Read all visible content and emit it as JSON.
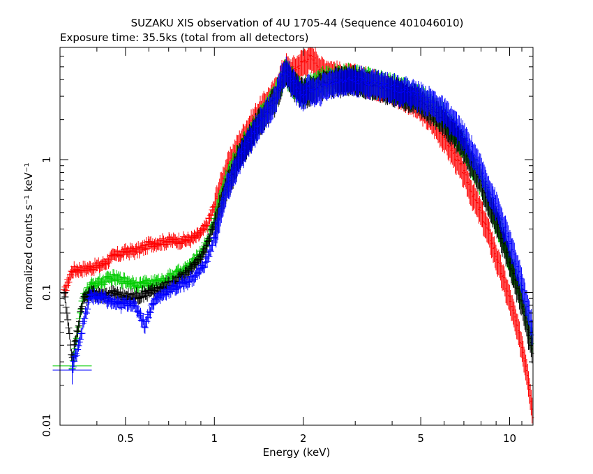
{
  "chart_data": {
    "type": "scatter",
    "title": "SUZAKU XIS observation of 4U 1705-44 (Sequence 401046010)",
    "subtitle": "Exposure time: 35.5ks (total from all detectors)",
    "xlabel": "Energy (keV)",
    "ylabel": "normalized counts s⁻¹ keV⁻¹",
    "xscale": "log",
    "yscale": "log",
    "xlim": [
      0.3,
      12
    ],
    "ylim": [
      0.01,
      7
    ],
    "x_ticks": [
      {
        "value": 0.5,
        "label": "0.5"
      },
      {
        "value": 1,
        "label": "1"
      },
      {
        "value": 2,
        "label": "2"
      },
      {
        "value": 5,
        "label": "5"
      },
      {
        "value": 10,
        "label": "10"
      }
    ],
    "y_ticks": [
      {
        "value": 0.01,
        "label": "0.01"
      },
      {
        "value": 0.1,
        "label": "0.1"
      },
      {
        "value": 1,
        "label": "1"
      }
    ],
    "grid": false,
    "legend": "none",
    "series": [
      {
        "color": "#ff0000",
        "points": [
          [
            0.31,
            0.1
          ],
          [
            0.33,
            0.148
          ],
          [
            0.35,
            0.15
          ],
          [
            0.37,
            0.152
          ],
          [
            0.39,
            0.156
          ],
          [
            0.41,
            0.16
          ],
          [
            0.43,
            0.17
          ],
          [
            0.45,
            0.185
          ],
          [
            0.48,
            0.196
          ],
          [
            0.51,
            0.205
          ],
          [
            0.54,
            0.205
          ],
          [
            0.57,
            0.215
          ],
          [
            0.6,
            0.23
          ],
          [
            0.63,
            0.237
          ],
          [
            0.66,
            0.24
          ],
          [
            0.7,
            0.245
          ],
          [
            0.74,
            0.246
          ],
          [
            0.78,
            0.248
          ],
          [
            0.82,
            0.25
          ],
          [
            0.86,
            0.26
          ],
          [
            0.9,
            0.28
          ],
          [
            0.95,
            0.33
          ],
          [
            1.0,
            0.45
          ],
          [
            1.05,
            0.63
          ],
          [
            1.1,
            0.85
          ],
          [
            1.2,
            1.25
          ],
          [
            1.3,
            1.7
          ],
          [
            1.4,
            2.2
          ],
          [
            1.5,
            2.7
          ],
          [
            1.6,
            3.2
          ],
          [
            1.7,
            4.5
          ],
          [
            1.75,
            5.0
          ],
          [
            1.8,
            4.6
          ],
          [
            1.9,
            4.9
          ],
          [
            2.0,
            5.5
          ],
          [
            2.1,
            5.9
          ],
          [
            2.2,
            5.6
          ],
          [
            2.3,
            4.7
          ],
          [
            2.5,
            4.5
          ],
          [
            2.7,
            4.2
          ],
          [
            3.0,
            4.1
          ],
          [
            3.3,
            3.9
          ],
          [
            3.6,
            3.7
          ],
          [
            4.0,
            3.4
          ],
          [
            4.5,
            3.0
          ],
          [
            5.0,
            2.5
          ],
          [
            5.5,
            2.0
          ],
          [
            6.0,
            1.5
          ],
          [
            6.5,
            1.1
          ],
          [
            7.0,
            0.8
          ],
          [
            7.5,
            0.55
          ],
          [
            8.0,
            0.4
          ],
          [
            8.5,
            0.28
          ],
          [
            9.0,
            0.19
          ],
          [
            9.5,
            0.13
          ],
          [
            10.0,
            0.09
          ],
          [
            10.5,
            0.06
          ],
          [
            11.0,
            0.04
          ],
          [
            11.5,
            0.025
          ],
          [
            12.0,
            0.012
          ]
        ]
      },
      {
        "color": "#00cc00",
        "points": [
          [
            0.33,
            0.028
          ],
          [
            0.36,
            0.095
          ],
          [
            0.38,
            0.11
          ],
          [
            0.4,
            0.12
          ],
          [
            0.42,
            0.12
          ],
          [
            0.45,
            0.13
          ],
          [
            0.48,
            0.125
          ],
          [
            0.52,
            0.12
          ],
          [
            0.56,
            0.115
          ],
          [
            0.6,
            0.118
          ],
          [
            0.65,
            0.12
          ],
          [
            0.7,
            0.13
          ],
          [
            0.75,
            0.14
          ],
          [
            0.8,
            0.15
          ],
          [
            0.85,
            0.17
          ],
          [
            0.9,
            0.2
          ],
          [
            0.95,
            0.25
          ],
          [
            1.0,
            0.35
          ],
          [
            1.05,
            0.5
          ],
          [
            1.1,
            0.7
          ],
          [
            1.2,
            1.05
          ],
          [
            1.3,
            1.45
          ],
          [
            1.4,
            1.9
          ],
          [
            1.5,
            2.35
          ],
          [
            1.6,
            2.9
          ],
          [
            1.7,
            4.2
          ],
          [
            1.75,
            4.6
          ],
          [
            1.8,
            4.2
          ],
          [
            1.9,
            3.6
          ],
          [
            2.0,
            3.3
          ],
          [
            2.1,
            3.6
          ],
          [
            2.3,
            3.9
          ],
          [
            2.5,
            4.1
          ],
          [
            2.8,
            4.2
          ],
          [
            3.0,
            4.1
          ],
          [
            3.5,
            3.8
          ],
          [
            4.0,
            3.5
          ],
          [
            4.5,
            3.2
          ],
          [
            5.0,
            2.9
          ],
          [
            5.5,
            2.5
          ],
          [
            6.0,
            2.1
          ],
          [
            6.5,
            1.7
          ],
          [
            7.0,
            1.3
          ],
          [
            7.5,
            0.95
          ],
          [
            8.0,
            0.7
          ],
          [
            8.5,
            0.5
          ],
          [
            9.0,
            0.36
          ],
          [
            9.5,
            0.26
          ],
          [
            10.0,
            0.18
          ],
          [
            10.5,
            0.13
          ],
          [
            11.0,
            0.09
          ],
          [
            11.5,
            0.06
          ],
          [
            12.0,
            0.04
          ]
        ]
      },
      {
        "color": "#000000",
        "points": [
          [
            0.31,
            0.1
          ],
          [
            0.33,
            0.032
          ],
          [
            0.36,
            0.09
          ],
          [
            0.39,
            0.1
          ],
          [
            0.42,
            0.095
          ],
          [
            0.46,
            0.1
          ],
          [
            0.5,
            0.092
          ],
          [
            0.55,
            0.095
          ],
          [
            0.6,
            0.1
          ],
          [
            0.65,
            0.105
          ],
          [
            0.7,
            0.115
          ],
          [
            0.75,
            0.125
          ],
          [
            0.8,
            0.14
          ],
          [
            0.86,
            0.16
          ],
          [
            0.92,
            0.2
          ],
          [
            1.0,
            0.32
          ],
          [
            1.1,
            0.62
          ],
          [
            1.2,
            1.0
          ],
          [
            1.3,
            1.4
          ],
          [
            1.4,
            1.85
          ],
          [
            1.5,
            2.3
          ],
          [
            1.6,
            2.8
          ],
          [
            1.7,
            4.1
          ],
          [
            1.75,
            4.5
          ],
          [
            1.8,
            4.1
          ],
          [
            1.9,
            3.5
          ],
          [
            2.0,
            3.2
          ],
          [
            2.2,
            3.5
          ],
          [
            2.5,
            3.9
          ],
          [
            3.0,
            4.0
          ],
          [
            3.5,
            3.7
          ],
          [
            4.0,
            3.4
          ],
          [
            5.0,
            2.8
          ],
          [
            6.0,
            2.0
          ],
          [
            7.0,
            1.25
          ],
          [
            8.0,
            0.68
          ],
          [
            9.0,
            0.35
          ],
          [
            10.0,
            0.17
          ],
          [
            11.0,
            0.085
          ],
          [
            12.0,
            0.035
          ]
        ]
      },
      {
        "color": "#0000ff",
        "points": [
          [
            0.33,
            0.026
          ],
          [
            0.38,
            0.095
          ],
          [
            0.42,
            0.09
          ],
          [
            0.45,
            0.085
          ],
          [
            0.48,
            0.08
          ],
          [
            0.52,
            0.085
          ],
          [
            0.56,
            0.07
          ],
          [
            0.58,
            0.056
          ],
          [
            0.62,
            0.085
          ],
          [
            0.66,
            0.095
          ],
          [
            0.7,
            0.105
          ],
          [
            0.75,
            0.11
          ],
          [
            0.8,
            0.12
          ],
          [
            0.85,
            0.13
          ],
          [
            0.9,
            0.15
          ],
          [
            0.95,
            0.18
          ],
          [
            1.0,
            0.26
          ],
          [
            1.05,
            0.4
          ],
          [
            1.1,
            0.6
          ],
          [
            1.2,
            0.95
          ],
          [
            1.3,
            1.35
          ],
          [
            1.4,
            1.8
          ],
          [
            1.5,
            2.25
          ],
          [
            1.6,
            2.8
          ],
          [
            1.7,
            4.3
          ],
          [
            1.75,
            4.7
          ],
          [
            1.8,
            4.3
          ],
          [
            1.9,
            3.4
          ],
          [
            2.0,
            3.1
          ],
          [
            2.1,
            3.5
          ],
          [
            2.2,
            3.2
          ],
          [
            2.4,
            3.7
          ],
          [
            2.7,
            4.0
          ],
          [
            3.0,
            4.0
          ],
          [
            3.5,
            3.8
          ],
          [
            4.0,
            3.5
          ],
          [
            4.5,
            3.3
          ],
          [
            5.0,
            3.0
          ],
          [
            5.5,
            2.7
          ],
          [
            6.0,
            2.3
          ],
          [
            6.5,
            1.9
          ],
          [
            7.0,
            1.5
          ],
          [
            7.5,
            1.15
          ],
          [
            8.0,
            0.85
          ],
          [
            8.5,
            0.62
          ],
          [
            9.0,
            0.46
          ],
          [
            9.5,
            0.33
          ],
          [
            10.0,
            0.24
          ],
          [
            10.5,
            0.17
          ],
          [
            11.0,
            0.12
          ],
          [
            11.5,
            0.08
          ],
          [
            12.0,
            0.05
          ]
        ]
      }
    ]
  }
}
